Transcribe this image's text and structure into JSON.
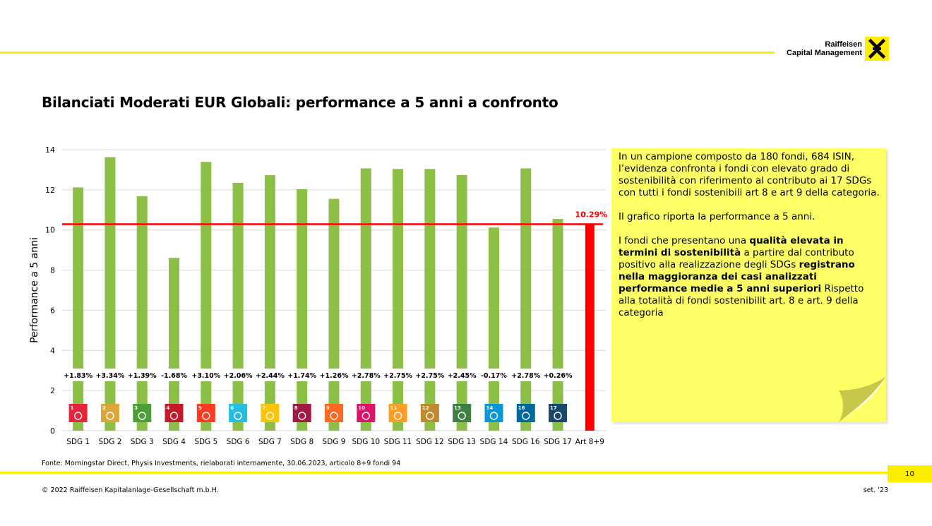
{
  "header": {
    "logo_line1": "Raiffeisen",
    "logo_line2": "Capital Management"
  },
  "title": "Bilanciati Moderati EUR Globali: performance a 5 anni a confronto",
  "chart_data": {
    "type": "bar",
    "ylabel": "Performance a 5 anni",
    "ylim": [
      0,
      14
    ],
    "yticks": [
      0,
      2,
      4,
      6,
      8,
      10,
      12,
      14
    ],
    "grid": true,
    "categories": [
      "SDG 1",
      "SDG 2",
      "SDG 3",
      "SDG 4",
      "SDG 5",
      "SDG 6",
      "SDG 7",
      "SDG 8",
      "SDG 9",
      "SDG 10",
      "SDG 11",
      "SDG 12",
      "SDG 13",
      "SDG 14",
      "SDG 16",
      "SDG 17",
      "Art 8+9"
    ],
    "values": [
      12.12,
      13.63,
      11.68,
      8.61,
      13.39,
      12.35,
      12.73,
      12.03,
      11.55,
      13.07,
      13.04,
      13.04,
      12.74,
      10.12,
      13.07,
      10.55,
      10.29
    ],
    "diff_labels": [
      "+1.83%",
      "+3.34%",
      "+1.39%",
      "-1.68%",
      "+3.10%",
      "+2.06%",
      "+2.44%",
      "+1.74%",
      "+1.26%",
      "+2.78%",
      "+2.75%",
      "+2.75%",
      "+2.45%",
      "-0.17%",
      "+2.78%",
      "+0.26%"
    ],
    "reference_line": {
      "value": 10.29,
      "label": "10.29%"
    },
    "colors": {
      "bar": "#8bbf45",
      "reference": "#ff0000",
      "grid": "#d9d9d9"
    },
    "sdg_icons": [
      {
        "num": "1",
        "color": "#e5243b"
      },
      {
        "num": "2",
        "color": "#dda63a"
      },
      {
        "num": "3",
        "color": "#4c9f38"
      },
      {
        "num": "4",
        "color": "#c5192d"
      },
      {
        "num": "5",
        "color": "#ff3a21"
      },
      {
        "num": "6",
        "color": "#26bde2"
      },
      {
        "num": "7",
        "color": "#fcc30b"
      },
      {
        "num": "8",
        "color": "#a21942"
      },
      {
        "num": "9",
        "color": "#fd6925"
      },
      {
        "num": "10",
        "color": "#dd1367"
      },
      {
        "num": "11",
        "color": "#fd9d24"
      },
      {
        "num": "12",
        "color": "#bf8b2e"
      },
      {
        "num": "13",
        "color": "#3f7e44"
      },
      {
        "num": "14",
        "color": "#0a97d9"
      },
      {
        "num": "16",
        "color": "#00689d"
      },
      {
        "num": "17",
        "color": "#19486a"
      }
    ]
  },
  "note": {
    "p1": "In un campione composto da 180 fondi, 684 ISIN, l’evidenza confronta i fondi con elevato grado di sostenibilità con riferimento al contributo ai 17 SDGs con tutti i fondi sostenibili art 8 e art 9 della categoria.",
    "p2": "Il grafico riporta la performance a 5 anni.",
    "p3_a": "I fondi che presentano una ",
    "p3_b": "qualità elevata in termini di sostenibilità",
    "p3_c": " a partire dal contributo positivo alla realizzazione degli SDGs ",
    "p3_d": "registrano nella maggioranza dei casi analizzati performance medie a 5 anni superiori",
    "p3_e": " Rispetto alla totalità di fondi sostenibilit art. 8 e art. 9 della categoria"
  },
  "footer": {
    "source": "Fonte: Morningstar Direct, Physis Investments, rielaborati internamente, 30.06.2023, articolo 8+9 fondi 94",
    "page_number": "10",
    "copyright": "© 2022 Raiffeisen Kapitalanlage-Gesellschaft m.b.H.",
    "date": "set. '23"
  }
}
